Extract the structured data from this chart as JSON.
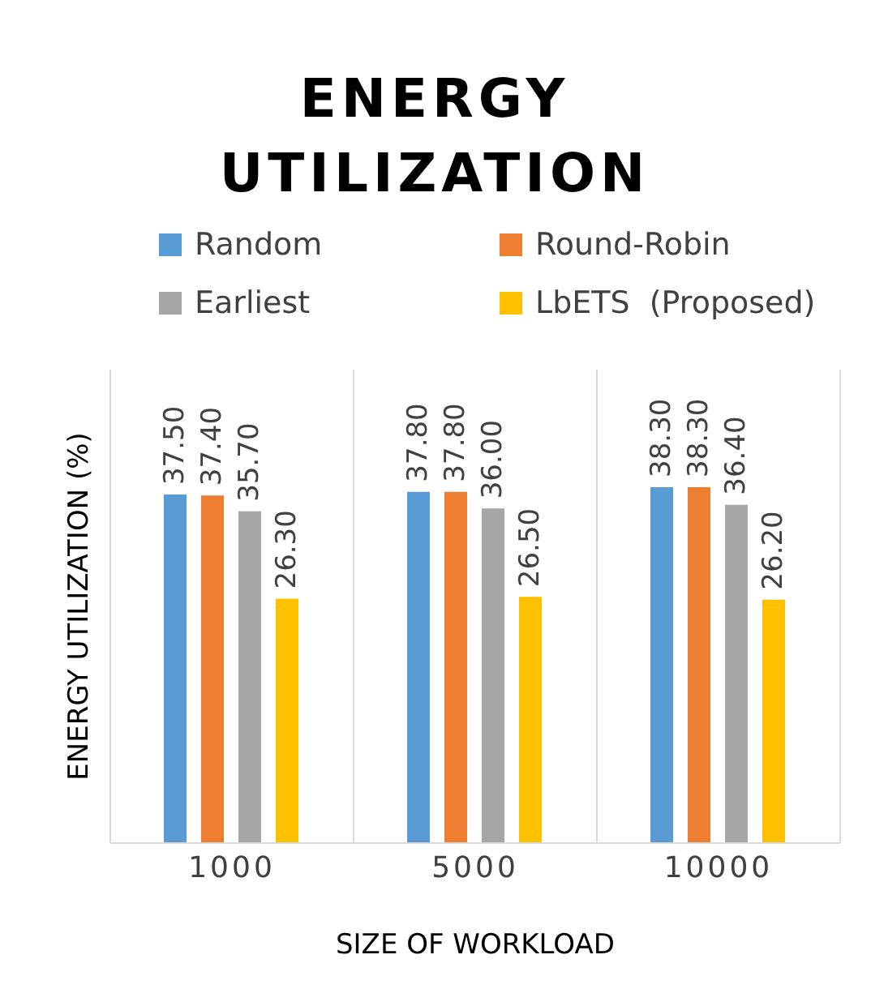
{
  "chart_data": {
    "type": "bar",
    "title": "ENERGY UTILIZATION",
    "xlabel": "SIZE OF WORKLOAD",
    "ylabel": "ENERGY UTILIZATION (%)",
    "categories": [
      "1000",
      "5000",
      "10000"
    ],
    "series": [
      {
        "name": "Random",
        "color": "#5b9bd5",
        "values": [
          37.5,
          37.8,
          38.3
        ],
        "value_labels": [
          "37.50",
          "37.80",
          "38.30"
        ]
      },
      {
        "name": "Round-Robin",
        "color": "#ed7d31",
        "values": [
          37.4,
          37.8,
          38.3
        ],
        "value_labels": [
          "37.40",
          "37.80",
          "38.30"
        ]
      },
      {
        "name": "Earliest",
        "color": "#a5a5a5",
        "values": [
          35.7,
          36.0,
          36.4
        ],
        "value_labels": [
          "35.70",
          "36.00",
          "36.40"
        ]
      },
      {
        "name": "LbETS  (Proposed)",
        "color": "#ffc000",
        "values": [
          26.3,
          26.5,
          26.2
        ],
        "value_labels": [
          "26.30",
          "26.50",
          "26.20"
        ]
      }
    ],
    "grid": "x",
    "legend": "top"
  }
}
